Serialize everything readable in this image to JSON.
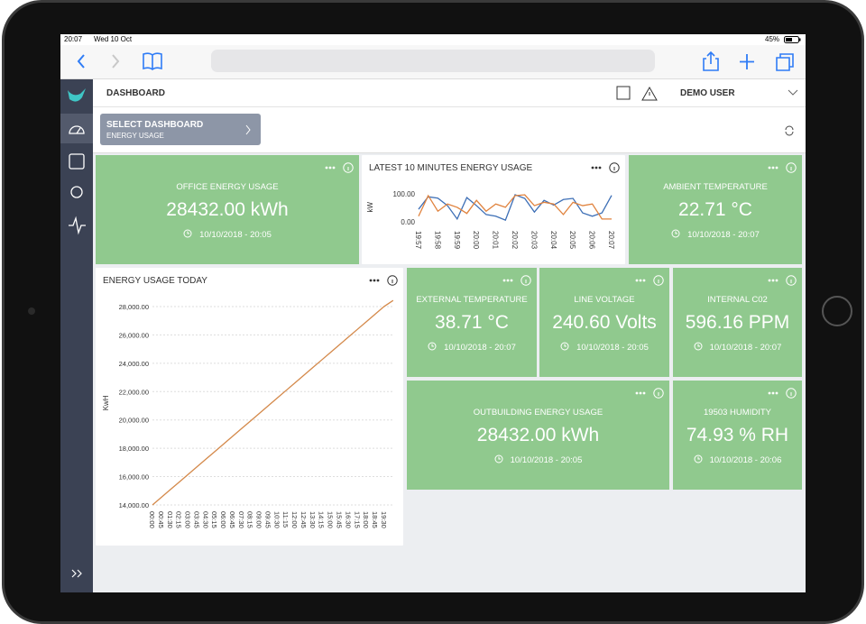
{
  "status": {
    "time": "20:07",
    "date": "Wed 10 Oct",
    "battery": "45%"
  },
  "header": {
    "title": "DASHBOARD",
    "user": "DEMO USER"
  },
  "selector": {
    "label": "SELECT DASHBOARD",
    "value": "ENERGY USAGE"
  },
  "tiles": [
    {
      "title": "OFFICE ENERGY USAGE",
      "value": "28432.00 kWh",
      "time": "10/10/2018 - 20:05"
    },
    {
      "title": "AMBIENT TEMPERATURE",
      "value": "22.71 °C",
      "time": "10/10/2018 - 20:07"
    },
    {
      "title": "EXTERNAL TEMPERATURE",
      "value": "38.71 °C",
      "time": "10/10/2018 - 20:07"
    },
    {
      "title": "LINE VOLTAGE",
      "value": "240.60 Volts",
      "time": "10/10/2018 - 20:05"
    },
    {
      "title": "INTERNAL C02",
      "value": "596.16 PPM",
      "time": "10/10/2018 - 20:07"
    },
    {
      "title": "OUTBUILDING ENERGY USAGE",
      "value": "28432.00 kWh",
      "time": "10/10/2018 - 20:05"
    },
    {
      "title": "19503 HUMIDITY",
      "value": "74.93 % RH",
      "time": "10/10/2018 - 20:06"
    }
  ],
  "chart_data": [
    {
      "type": "line",
      "title": "LATEST 10 MINUTES ENERGY USAGE",
      "y_label": "kW",
      "categories": [
        "19:57",
        null,
        "19:58",
        null,
        "19:59",
        null,
        "20:00",
        null,
        "20:01",
        null,
        "20:02",
        null,
        "20:03",
        null,
        "20:04",
        null,
        "20:05",
        null,
        "20:06",
        null,
        "20:07"
      ],
      "series": [
        {
          "color": "#3d6fb6",
          "values": [
            45,
            90,
            85,
            58,
            10,
            87,
            58,
            26,
            20,
            6,
            97,
            84,
            35,
            77,
            60,
            80,
            84,
            32,
            20,
            32,
            95
          ]
        },
        {
          "color": "#e0823d",
          "values": [
            20,
            94,
            38,
            64,
            52,
            30,
            77,
            38,
            64,
            52,
            94,
            97,
            58,
            70,
            64,
            26,
            70,
            58,
            64,
            10,
            10
          ]
        }
      ],
      "ylim": [
        -5,
        110
      ],
      "yticks": [
        {
          "value": 0,
          "label": "0.00"
        },
        {
          "value": 100,
          "label": "100.00"
        }
      ],
      "grid": false
    },
    {
      "type": "line",
      "title": "ENERGY USAGE TODAY",
      "y_label": "KwH",
      "color": "#d4894a",
      "categories": [
        "00:00",
        "00:45",
        "01:30",
        "02:15",
        "03:00",
        "03:45",
        "04:30",
        "05:15",
        "06:00",
        "06:45",
        "07:30",
        "08:15",
        "09:00",
        "09:45",
        "10:30",
        "11:15",
        "12:00",
        "12:45",
        "13:30",
        "14:15",
        "15:00",
        "15:45",
        "16:30",
        "17:15",
        "18:00",
        "18:45",
        "19:30",
        null
      ],
      "values": [
        14000,
        14539,
        15078,
        15617,
        16156,
        16695,
        17234,
        17773,
        18312,
        18851,
        19390,
        19929,
        20468,
        21007,
        21546,
        22085,
        22624,
        23163,
        23702,
        24241,
        24780,
        25319,
        25858,
        26397,
        26936,
        27475,
        28014,
        28432
      ],
      "ylim": [
        13700,
        28700
      ],
      "yticks": [
        {
          "value": 14000,
          "label": "14,000.00"
        },
        {
          "value": 16000,
          "label": "16,000.00"
        },
        {
          "value": 18000,
          "label": "18,000.00"
        },
        {
          "value": 20000,
          "label": "20,000.00"
        },
        {
          "value": 22000,
          "label": "22,000.00"
        },
        {
          "value": 24000,
          "label": "24,000.00"
        },
        {
          "value": 26000,
          "label": "26,000.00"
        },
        {
          "value": 28000,
          "label": "28,000.00"
        }
      ],
      "grid": true
    }
  ]
}
